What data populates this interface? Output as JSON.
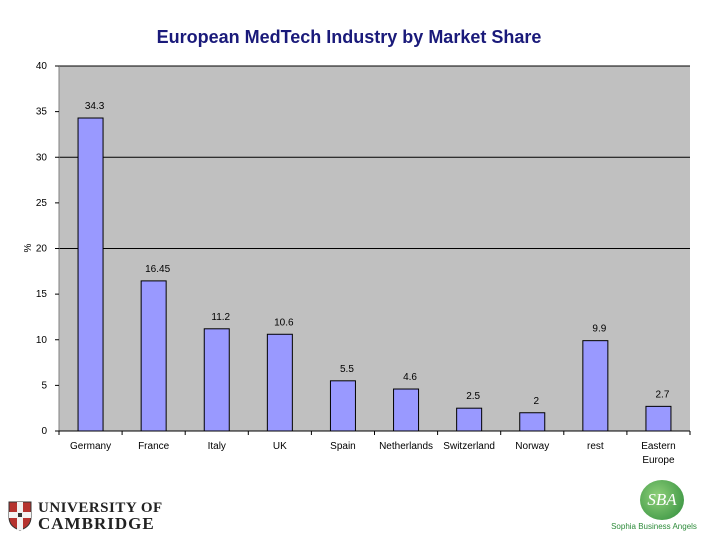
{
  "chart_data": {
    "type": "bar",
    "title": "European MedTech Industry by Market Share",
    "ylabel": "%",
    "xlabel": "",
    "ylim": [
      0,
      40
    ],
    "yticks": [
      "0",
      "5",
      "10",
      "15",
      "20",
      "25",
      "30",
      "35",
      "40"
    ],
    "categories": [
      "Germany",
      "France",
      "Italy",
      "UK",
      "Spain",
      "Netherlands",
      "Switzerland",
      "Norway",
      "rest",
      "Eastern Europe"
    ],
    "values": [
      34.3,
      16.45,
      11.2,
      10.6,
      5.5,
      4.6,
      2.5,
      2,
      9.9,
      2.7
    ],
    "value_labels": [
      "34.3",
      "16.45",
      "11.2",
      "10.6",
      "5.5",
      "4.6",
      "2.5",
      "2",
      "9.9",
      "2.7"
    ],
    "gridlines": [
      20,
      30,
      40
    ],
    "bar_color": "#9999ff",
    "plot_background": "#c0c0c0"
  },
  "logos": {
    "cambridge_line1": "UNIVERSITY OF",
    "cambridge_line2": "CAMBRIDGE",
    "sba_monogram": "SBA",
    "sba_caption": "Sophia Business Angels"
  }
}
